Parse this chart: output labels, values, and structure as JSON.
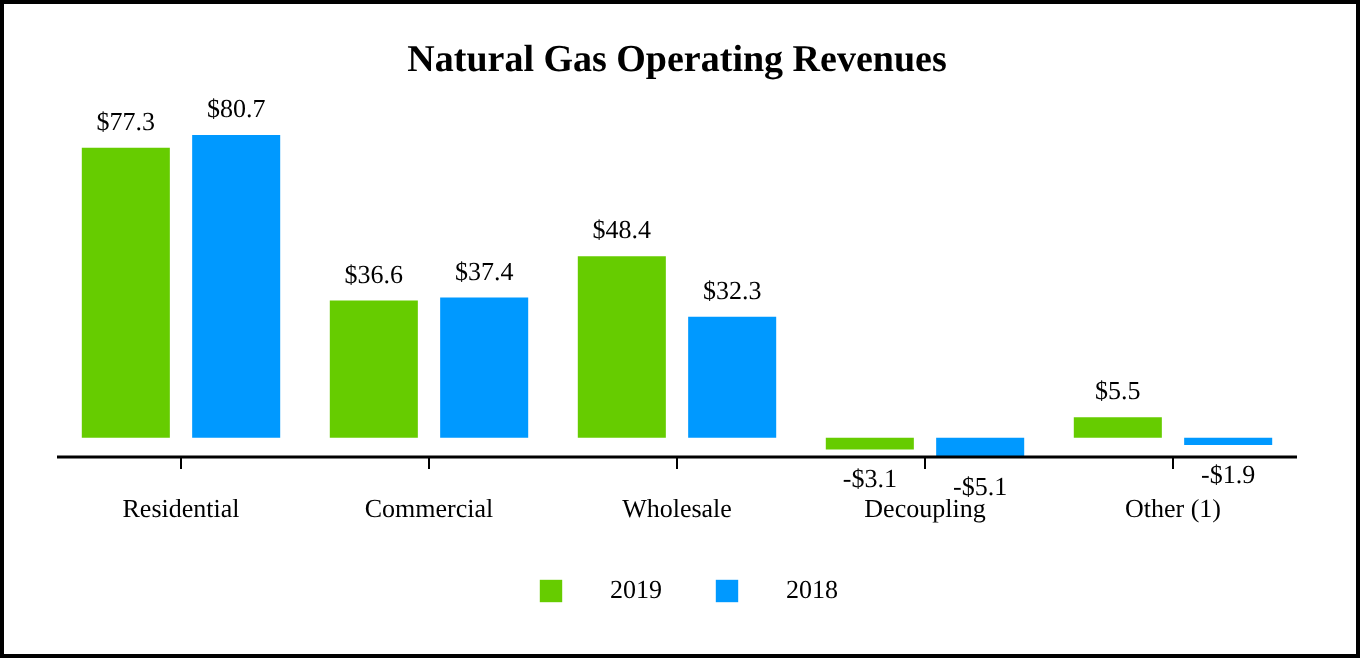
{
  "chart_data": {
    "type": "bar",
    "title": "Natural Gas Operating Revenues",
    "categories": [
      "Residential",
      "Commercial",
      "Wholesale",
      "Decoupling",
      "Other (1)"
    ],
    "series": [
      {
        "name": "2019",
        "color": "#66cc00",
        "values": [
          77.3,
          36.6,
          48.4,
          -3.1,
          5.5
        ],
        "value_labels": [
          "$77.3",
          "$36.6",
          "$48.4",
          "-$3.1",
          "$5.5"
        ]
      },
      {
        "name": "2018",
        "color": "#0099ff",
        "values": [
          80.7,
          37.4,
          32.3,
          -5.1,
          -1.9
        ],
        "value_labels": [
          "$80.7",
          "$37.4",
          "$32.3",
          "-$5.1",
          "-$1.9"
        ]
      }
    ],
    "legend": "bottom"
  }
}
